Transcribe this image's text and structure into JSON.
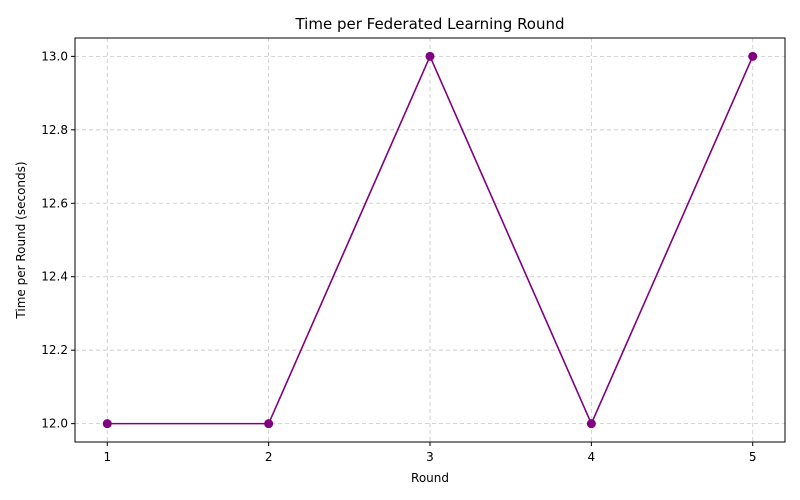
{
  "chart_data": {
    "type": "line",
    "title": "Time per Federated Learning Round",
    "xlabel": "Round",
    "ylabel": "Time per Round (seconds)",
    "x": [
      1,
      2,
      3,
      4,
      5
    ],
    "series": [
      {
        "values": [
          12.0,
          12.0,
          13.0,
          12.0,
          13.0
        ]
      }
    ],
    "xticks": [
      "1",
      "2",
      "3",
      "4",
      "5"
    ],
    "yticks": [
      "12.0",
      "12.2",
      "12.4",
      "12.6",
      "12.8",
      "13.0"
    ],
    "xlim": [
      0.8,
      5.2
    ],
    "ylim": [
      11.95,
      13.05
    ],
    "grid": true,
    "line_color": "#800080",
    "marker": "circle"
  }
}
